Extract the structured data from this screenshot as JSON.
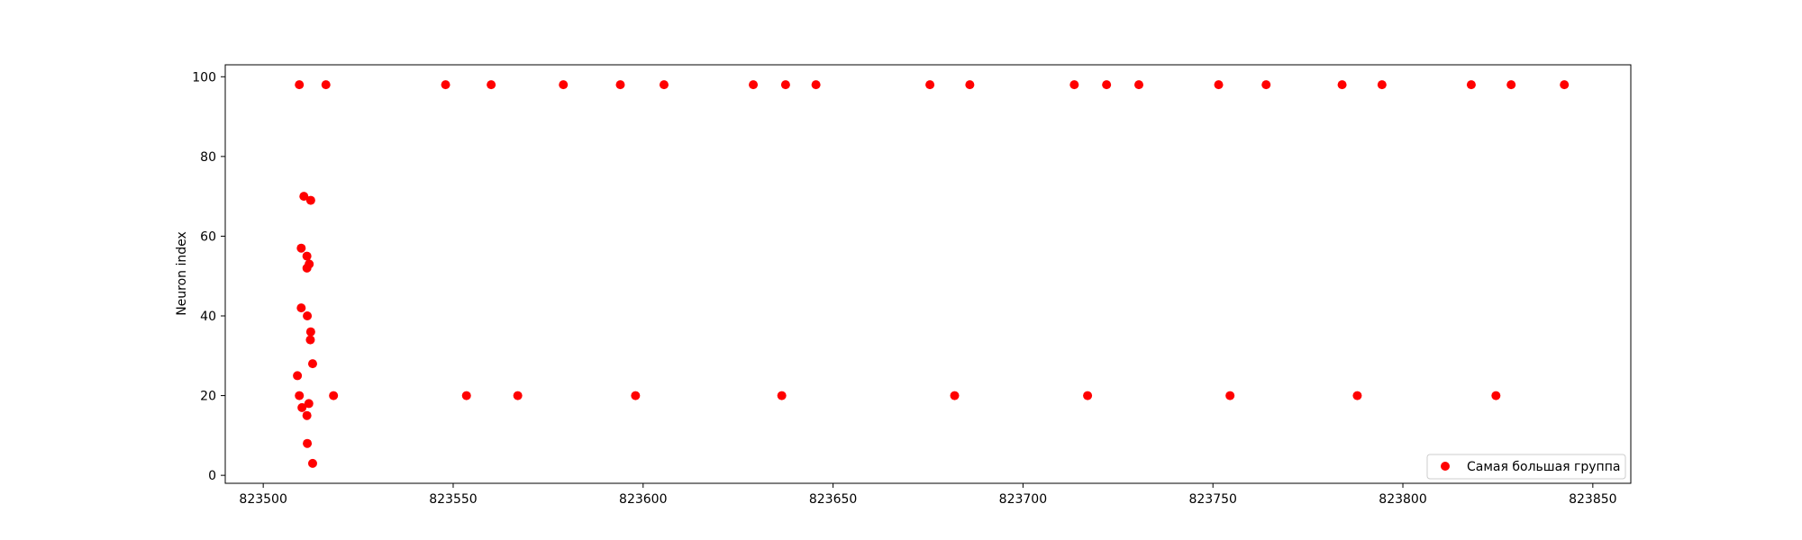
{
  "chart_data": {
    "type": "scatter",
    "title": "",
    "xlabel": "",
    "ylabel": "Neuron index",
    "xlim": [
      823490,
      823860
    ],
    "ylim": [
      -2,
      103
    ],
    "xticks": [
      823500,
      823550,
      823600,
      823650,
      823700,
      823750,
      823800,
      823850
    ],
    "yticks": [
      0,
      20,
      40,
      60,
      80,
      100
    ],
    "grid": false,
    "legend_position": "bottom-right",
    "color": "#ff0000",
    "series": [
      {
        "name": "Самая большая группа",
        "points": [
          {
            "x": 823509.0,
            "y": 25
          },
          {
            "x": 823509.5,
            "y": 20
          },
          {
            "x": 823510.0,
            "y": 42
          },
          {
            "x": 823510.0,
            "y": 57
          },
          {
            "x": 823510.2,
            "y": 17
          },
          {
            "x": 823510.7,
            "y": 70
          },
          {
            "x": 823511.5,
            "y": 55
          },
          {
            "x": 823511.5,
            "y": 52
          },
          {
            "x": 823511.6,
            "y": 40
          },
          {
            "x": 823511.6,
            "y": 8
          },
          {
            "x": 823511.5,
            "y": 15
          },
          {
            "x": 823512.0,
            "y": 18
          },
          {
            "x": 823512.1,
            "y": 53
          },
          {
            "x": 823512.5,
            "y": 69
          },
          {
            "x": 823512.5,
            "y": 36
          },
          {
            "x": 823512.4,
            "y": 34
          },
          {
            "x": 823513.0,
            "y": 28
          },
          {
            "x": 823513.0,
            "y": 3
          },
          {
            "x": 823518.5,
            "y": 20
          },
          {
            "x": 823509.5,
            "y": 98
          },
          {
            "x": 823516.5,
            "y": 98
          },
          {
            "x": 823548.0,
            "y": 98
          },
          {
            "x": 823560.0,
            "y": 98
          },
          {
            "x": 823579.0,
            "y": 98
          },
          {
            "x": 823594.0,
            "y": 98
          },
          {
            "x": 823605.5,
            "y": 98
          },
          {
            "x": 823629.0,
            "y": 98
          },
          {
            "x": 823637.5,
            "y": 98
          },
          {
            "x": 823645.5,
            "y": 98
          },
          {
            "x": 823675.5,
            "y": 98
          },
          {
            "x": 823686.0,
            "y": 98
          },
          {
            "x": 823713.5,
            "y": 98
          },
          {
            "x": 823722.0,
            "y": 98
          },
          {
            "x": 823730.5,
            "y": 98
          },
          {
            "x": 823751.5,
            "y": 98
          },
          {
            "x": 823764.0,
            "y": 98
          },
          {
            "x": 823784.0,
            "y": 98
          },
          {
            "x": 823794.5,
            "y": 98
          },
          {
            "x": 823818.0,
            "y": 98
          },
          {
            "x": 823828.5,
            "y": 98
          },
          {
            "x": 823842.5,
            "y": 98
          },
          {
            "x": 823553.5,
            "y": 20
          },
          {
            "x": 823567.0,
            "y": 20
          },
          {
            "x": 823598.0,
            "y": 20
          },
          {
            "x": 823636.5,
            "y": 20
          },
          {
            "x": 823682.0,
            "y": 20
          },
          {
            "x": 823717.0,
            "y": 20
          },
          {
            "x": 823754.5,
            "y": 20
          },
          {
            "x": 823788.0,
            "y": 20
          },
          {
            "x": 823824.5,
            "y": 20
          }
        ]
      }
    ]
  }
}
